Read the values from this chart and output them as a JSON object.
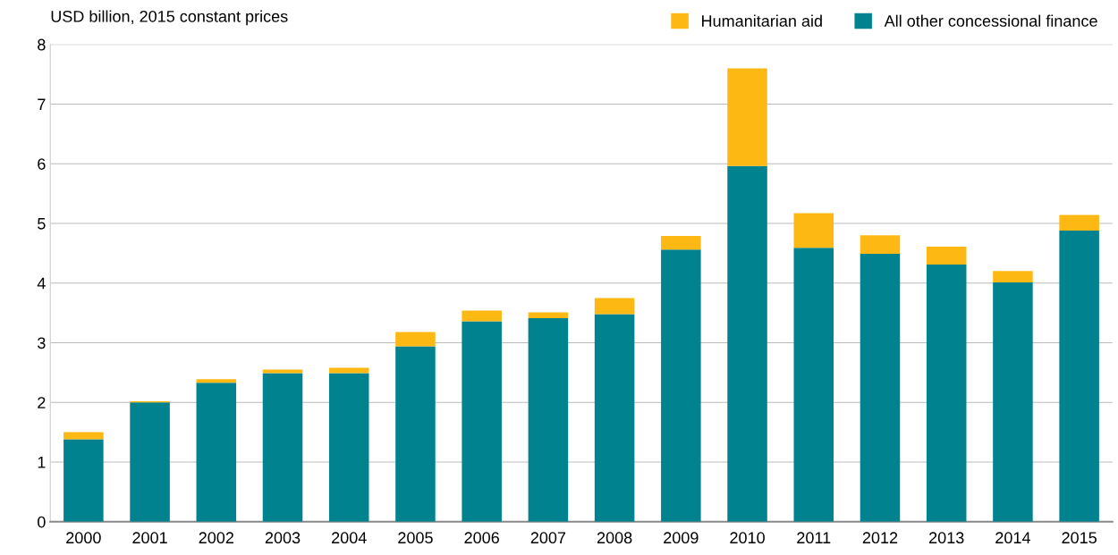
{
  "chart_data": {
    "type": "bar",
    "stacked": true,
    "ylabel": "USD billion, 2015 constant prices",
    "categories": [
      "2000",
      "2001",
      "2002",
      "2003",
      "2004",
      "2005",
      "2006",
      "2007",
      "2008",
      "2009",
      "2010",
      "2011",
      "2012",
      "2013",
      "2014",
      "2015"
    ],
    "series": [
      {
        "name": "All other concessional finance",
        "color": "#00828f",
        "values": [
          1.38,
          2.0,
          2.33,
          2.49,
          2.49,
          2.94,
          3.36,
          3.41,
          3.48,
          4.56,
          5.96,
          4.59,
          4.49,
          4.31,
          4.01,
          4.88
        ]
      },
      {
        "name": "Humanitarian aid",
        "color": "#fdb813",
        "values": [
          0.12,
          0.02,
          0.06,
          0.06,
          0.09,
          0.24,
          0.18,
          0.1,
          0.27,
          0.23,
          1.64,
          0.58,
          0.31,
          0.3,
          0.19,
          0.26
        ]
      }
    ],
    "ylim": [
      0,
      8
    ],
    "yticks": [
      0,
      1,
      2,
      3,
      4,
      5,
      6,
      7,
      8
    ],
    "grid": "y",
    "legend": "top right"
  }
}
